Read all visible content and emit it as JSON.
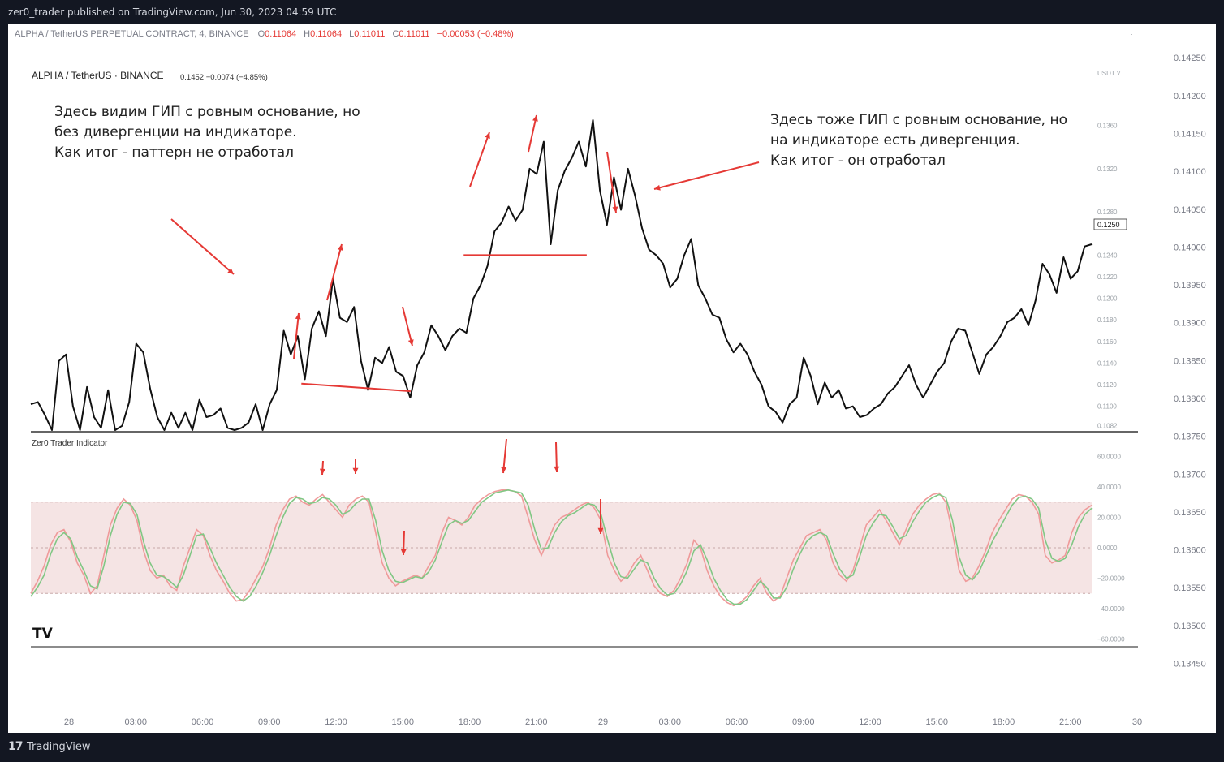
{
  "header": {
    "publish_line": "zer0_trader published on TradingView.com, Jun 30, 2023 04:59 UTC"
  },
  "legend": {
    "symbol": "ALPHA / TetherUS PERPETUAL CONTRACT, 4, BINANCE",
    "o_label": "O",
    "o_value": "0.11064",
    "h_label": "H",
    "h_value": "0.11064",
    "l_label": "L",
    "l_value": "0.11011",
    "c_label": "C",
    "c_value": "0.11011",
    "change": "−0.00053 (−0.48%)"
  },
  "footer": {
    "logo": "17",
    "brand": "TradingView"
  },
  "colors": {
    "price_line": "#111111",
    "annotation": "#e53935",
    "oscillator_fast": "#ef9a9a",
    "oscillator_slow": "#81c784",
    "band": "#f5e4e4",
    "text_up": "#26a69a",
    "text_down": "#e53935"
  },
  "chart_data": [
    {
      "type": "line",
      "title": "ALPHA / TetherUS · BINANCE",
      "header_values": "0.1452  −0.0074 (−4.85%)",
      "currency_badge": "USDT ˅",
      "last_value_tag": "0.1250",
      "y_axis_ticks": [
        "0.1360",
        "0.1320",
        "0.1280",
        "0.1240",
        "0.1220",
        "0.1200",
        "0.1180",
        "0.1160",
        "0.1140",
        "0.1120",
        "0.1100",
        "0.1082"
      ],
      "ylim": [
        0.1078,
        0.138
      ],
      "annotations": [
        {
          "lines": [
            "Здесь видим ГИП с ровным основание, но",
            "без дивергенции на индикаторе.",
            "Как итог - паттерн не отработал"
          ]
        },
        {
          "lines": [
            "Здесь тоже ГИП с ровным основание, но",
            "на индикаторе есть дивергенция.",
            "Как итог - он отработал"
          ]
        }
      ],
      "x_time_labels": [
        "28",
        "03:00",
        "06:00",
        "09:00",
        "12:00",
        "15:00",
        "18:00",
        "21:00",
        "29",
        "03:00",
        "06:00",
        "09:00",
        "12:00",
        "15:00",
        "18:00",
        "21:00",
        "30"
      ],
      "series": [
        {
          "values": [
            0.1102,
            0.1104,
            0.1092,
            0.1078,
            0.1142,
            0.1148,
            0.11,
            0.1078,
            0.1118,
            0.109,
            0.108,
            0.1115,
            0.1078,
            0.1082,
            0.1104,
            0.1158,
            0.115,
            0.1116,
            0.109,
            0.1078,
            0.1094,
            0.108,
            0.1094,
            0.1078,
            0.1106,
            0.109,
            0.1092,
            0.1098,
            0.108,
            0.1078,
            0.108,
            0.1085,
            0.1102,
            0.1078,
            0.1102,
            0.1115,
            0.117,
            0.1148,
            0.1165,
            0.1125,
            0.1172,
            0.1188,
            0.1165,
            0.1218,
            0.1182,
            0.1178,
            0.1192,
            0.1142,
            0.1115,
            0.1145,
            0.114,
            0.1155,
            0.1132,
            0.1128,
            0.1108,
            0.1138,
            0.115,
            0.1175,
            0.1165,
            0.1152,
            0.1165,
            0.1172,
            0.1168,
            0.12,
            0.1212,
            0.123,
            0.1262,
            0.127,
            0.1285,
            0.1272,
            0.1282,
            0.132,
            0.1315,
            0.1345,
            0.125,
            0.13,
            0.1318,
            0.133,
            0.1345,
            0.1322,
            0.1365,
            0.13,
            0.1268,
            0.1312,
            0.1282,
            0.132,
            0.1295,
            0.1265,
            0.1245,
            0.124,
            0.1232,
            0.121,
            0.1218,
            0.124,
            0.1255,
            0.1212,
            0.12,
            0.1185,
            0.1182,
            0.1162,
            0.115,
            0.1158,
            0.1148,
            0.1132,
            0.112,
            0.11,
            0.1095,
            0.1085,
            0.1102,
            0.1108,
            0.1145,
            0.1128,
            0.1102,
            0.1122,
            0.1108,
            0.1115,
            0.1098,
            0.11,
            0.109,
            0.1092,
            0.1098,
            0.1102,
            0.1112,
            0.1118,
            0.1128,
            0.1138,
            0.112,
            0.1108,
            0.112,
            0.1132,
            0.114,
            0.116,
            0.1172,
            0.117,
            0.115,
            0.113,
            0.1148,
            0.1155,
            0.1165,
            0.1178,
            0.1182,
            0.119,
            0.1175,
            0.1198,
            0.1232,
            0.1222,
            0.1205,
            0.1238,
            0.1218,
            0.1225,
            0.1248,
            0.125
          ]
        }
      ],
      "lines": [
        {
          "label": "neckline-1",
          "x": [
            0.255,
            0.358
          ],
          "y": [
            0.1121,
            0.1114
          ]
        },
        {
          "label": "neckline-2",
          "x": [
            0.408,
            0.524
          ],
          "y": [
            0.124,
            0.124
          ]
        }
      ]
    },
    {
      "type": "line",
      "title": "Zer0 Trader Indicator",
      "y_axis_ticks": [
        "60.0000",
        "40.0000",
        "20.0000",
        "0.0000",
        "−20.0000",
        "−40.0000",
        "−60.0000"
      ],
      "ylim": [
        -64,
        64
      ],
      "bands": [
        30,
        -30
      ],
      "series": [
        {
          "values": [
            -30,
            -22,
            -12,
            2,
            10,
            12,
            4,
            -10,
            -18,
            -30,
            -25,
            -5,
            15,
            26,
            32,
            28,
            18,
            -2,
            -15,
            -20,
            -18,
            -25,
            -28,
            -12,
            0,
            12,
            8,
            -5,
            -15,
            -22,
            -30,
            -35,
            -34,
            -28,
            -20,
            -12,
            0,
            15,
            25,
            32,
            34,
            30,
            28,
            32,
            35,
            30,
            25,
            20,
            28,
            32,
            34,
            30,
            10,
            -10,
            -20,
            -25,
            -22,
            -20,
            -18,
            -20,
            -12,
            -5,
            10,
            20,
            18,
            15,
            20,
            28,
            32,
            35,
            37,
            38,
            38,
            37,
            34,
            20,
            5,
            -5,
            5,
            15,
            20,
            22,
            25,
            28,
            30,
            26,
            18,
            -5,
            -15,
            -22,
            -18,
            -10,
            -5,
            -15,
            -25,
            -30,
            -32,
            -28,
            -20,
            -10,
            5,
            0,
            -15,
            -25,
            -32,
            -36,
            -38,
            -36,
            -32,
            -25,
            -20,
            -30,
            -35,
            -32,
            -20,
            -8,
            0,
            8,
            10,
            12,
            5,
            -10,
            -18,
            -22,
            -15,
            0,
            15,
            20,
            25,
            18,
            10,
            2,
            12,
            22,
            28,
            32,
            35,
            36,
            30,
            10,
            -15,
            -22,
            -20,
            -12,
            -2,
            10,
            18,
            25,
            32,
            35,
            34,
            30,
            22,
            -5,
            -10,
            -8,
            -5,
            10,
            20,
            25,
            28
          ],
          "name_hint": "fast"
        },
        {
          "values": [
            -32,
            -26,
            -18,
            -4,
            6,
            10,
            6,
            -6,
            -15,
            -25,
            -27,
            -12,
            8,
            22,
            30,
            29,
            22,
            4,
            -10,
            -18,
            -19,
            -22,
            -26,
            -18,
            -5,
            8,
            9,
            0,
            -10,
            -18,
            -26,
            -32,
            -35,
            -32,
            -25,
            -16,
            -5,
            8,
            20,
            29,
            33,
            32,
            29,
            30,
            33,
            32,
            28,
            22,
            24,
            29,
            32,
            32,
            18,
            -2,
            -15,
            -22,
            -23,
            -21,
            -19,
            -20,
            -16,
            -8,
            4,
            15,
            18,
            16,
            18,
            24,
            30,
            33,
            36,
            37,
            38,
            37,
            36,
            28,
            12,
            -1,
            0,
            10,
            17,
            21,
            23,
            26,
            29,
            28,
            22,
            5,
            -10,
            -19,
            -20,
            -14,
            -8,
            -10,
            -20,
            -27,
            -31,
            -30,
            -24,
            -15,
            -2,
            2,
            -8,
            -20,
            -28,
            -34,
            -37,
            -37,
            -34,
            -28,
            -22,
            -26,
            -33,
            -33,
            -26,
            -14,
            -4,
            4,
            8,
            10,
            8,
            -4,
            -14,
            -20,
            -18,
            -6,
            8,
            16,
            22,
            21,
            14,
            6,
            8,
            17,
            24,
            30,
            33,
            35,
            33,
            18,
            -6,
            -18,
            -21,
            -16,
            -6,
            4,
            12,
            20,
            28,
            33,
            34,
            32,
            26,
            5,
            -7,
            -9,
            -7,
            2,
            14,
            22,
            26
          ],
          "name_hint": "slow"
        }
      ]
    },
    {
      "type": "line",
      "title": "",
      "y_axis_ticks": [
        "0.14250",
        "0.14200",
        "0.14150",
        "0.14100",
        "0.14050",
        "0.14000",
        "0.13950",
        "0.13900",
        "0.13850",
        "0.13800",
        "0.13750",
        "0.13700",
        "0.13650",
        "0.13600",
        "0.13550",
        "0.13500",
        "0.13450"
      ],
      "ylim": [
        0.13428,
        0.14262
      ]
    }
  ]
}
